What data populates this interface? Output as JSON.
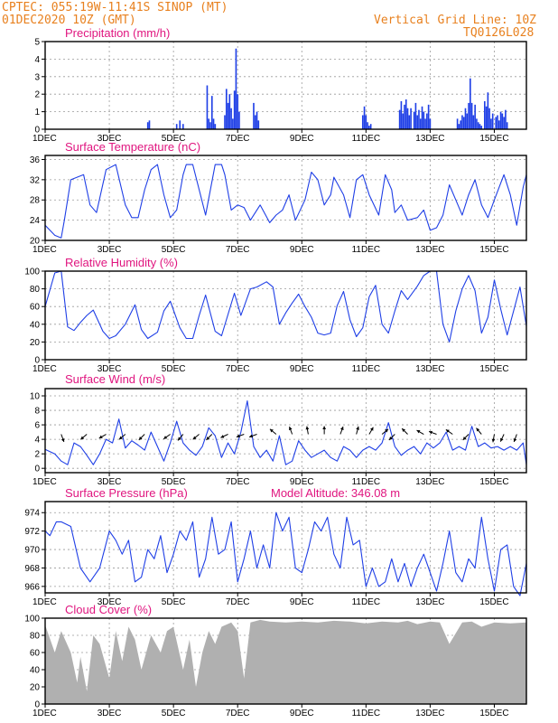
{
  "header": {
    "line1": "CPTEC:   055:19W-11:41S   SINOP (MT)",
    "line2": "01DEC2020 10Z (GMT)",
    "grid_note": "Vertical Grid Line: 10Z",
    "model_id": "TQ0126L028"
  },
  "colors": {
    "header": "#e8801e",
    "panel_title": "#e0157f",
    "series": "#1f3fe6",
    "cloud": "#b0b0b0",
    "grid": "#9a9a9a"
  },
  "x_axis": {
    "tick_labels": [
      "1DEC",
      "3DEC",
      "5DEC",
      "7DEC",
      "9DEC",
      "11DEC",
      "13DEC",
      "15DEC"
    ],
    "tick_days": [
      0,
      2,
      4,
      6,
      8,
      10,
      12,
      14
    ],
    "range_days": [
      0,
      15
    ]
  },
  "chart_data": [
    {
      "id": "precip",
      "type": "bar",
      "title": "Precipitation (mm/h)",
      "ylim": [
        0,
        5
      ],
      "yticks": [
        0,
        1,
        2,
        3,
        4,
        5
      ],
      "x_day": [
        3.2,
        3.25,
        4.1,
        4.2,
        4.3,
        5.05,
        5.1,
        5.15,
        5.2,
        5.25,
        5.3,
        5.6,
        5.65,
        5.7,
        5.75,
        5.8,
        5.85,
        5.9,
        5.95,
        6.0,
        6.05,
        6.5,
        6.55,
        6.6,
        6.65,
        9.9,
        9.95,
        10.0,
        10.05,
        10.1,
        10.15,
        11.05,
        11.1,
        11.15,
        11.2,
        11.25,
        11.3,
        11.35,
        11.4,
        11.5,
        11.55,
        11.6,
        11.65,
        11.7,
        11.75,
        11.8,
        11.85,
        11.9,
        11.95,
        12.0,
        12.85,
        12.9,
        12.95,
        13.0,
        13.05,
        13.1,
        13.15,
        13.2,
        13.25,
        13.3,
        13.35,
        13.4,
        13.45,
        13.5,
        13.55,
        13.6,
        13.7,
        13.75,
        13.8,
        13.85,
        13.9,
        13.95,
        14.05,
        14.1,
        14.15,
        14.2,
        14.25,
        14.3,
        14.35,
        14.4
      ],
      "values": [
        0.4,
        0.5,
        0.3,
        0.5,
        0.3,
        2.5,
        0.6,
        0.4,
        1.9,
        0.6,
        0.3,
        0.8,
        2.3,
        1.5,
        2.0,
        1.2,
        0.6,
        2.2,
        4.6,
        2.0,
        1.0,
        1.5,
        0.8,
        1.0,
        0.5,
        0.8,
        1.3,
        0.8,
        0.4,
        0.2,
        0.3,
        1.1,
        1.6,
        0.9,
        1.4,
        1.7,
        1.2,
        0.8,
        1.2,
        1.0,
        1.5,
        0.8,
        1.1,
        0.6,
        1.3,
        1.0,
        0.6,
        0.9,
        1.4,
        0.6,
        0.6,
        0.3,
        0.5,
        0.8,
        0.7,
        1.2,
        0.9,
        1.5,
        2.9,
        1.5,
        0.8,
        1.4,
        0.6,
        0.4,
        0.3,
        0.2,
        1.6,
        1.3,
        2.1,
        1.2,
        0.6,
        0.9,
        0.7,
        0.8,
        0.5,
        1.0,
        0.9,
        0.7,
        1.1,
        0.4
      ]
    },
    {
      "id": "temp",
      "type": "line",
      "title": "Surface Temperature (nC)",
      "ylim": [
        20,
        36.8
      ],
      "yticks": [
        20,
        24,
        28,
        32,
        36
      ],
      "x_day": [
        0,
        0.3,
        0.5,
        0.6,
        0.8,
        1.2,
        1.4,
        1.6,
        1.9,
        2.2,
        2.5,
        2.7,
        2.9,
        3.1,
        3.3,
        3.5,
        3.7,
        3.9,
        4.1,
        4.3,
        4.4,
        4.6,
        4.8,
        5.0,
        5.3,
        5.5,
        5.6,
        5.8,
        6.0,
        6.2,
        6.4,
        6.7,
        7.0,
        7.2,
        7.4,
        7.6,
        7.8,
        8.1,
        8.3,
        8.5,
        8.7,
        8.9,
        9.0,
        9.3,
        9.5,
        9.7,
        9.9,
        10.1,
        10.4,
        10.6,
        10.8,
        10.9,
        11.1,
        11.3,
        11.6,
        11.8,
        12.0,
        12.2,
        12.4,
        12.6,
        12.8,
        13.0,
        13.2,
        13.4,
        13.6,
        13.8,
        14.0,
        14.3,
        14.5,
        14.7,
        14.9,
        15.0
      ],
      "values": [
        23,
        21,
        20.5,
        24,
        32,
        33,
        27,
        25.5,
        34,
        35,
        27,
        24.5,
        24.5,
        30,
        34,
        35,
        29,
        24.5,
        26,
        33,
        35,
        35,
        30,
        25,
        35,
        35,
        33,
        26,
        27,
        26.5,
        24,
        27,
        23.5,
        25,
        26,
        29,
        24,
        28,
        33.5,
        32,
        27,
        29,
        32.5,
        29,
        24.5,
        32,
        33,
        29,
        25,
        33,
        30,
        25.5,
        27,
        24,
        24.5,
        26,
        22,
        22.5,
        25,
        31,
        28,
        25,
        29,
        32,
        27,
        24.5,
        28,
        33,
        29,
        23,
        30.5,
        33
      ]
    },
    {
      "id": "rh",
      "type": "line",
      "title": "Relative Humidity (%)",
      "ylim": [
        0,
        100
      ],
      "yticks": [
        0,
        20,
        40,
        60,
        80,
        100
      ],
      "x_day": [
        0,
        0.3,
        0.5,
        0.7,
        0.9,
        1.1,
        1.3,
        1.5,
        1.8,
        2.0,
        2.2,
        2.5,
        2.8,
        3.0,
        3.2,
        3.5,
        3.7,
        3.9,
        4.2,
        4.4,
        4.6,
        4.8,
        5.0,
        5.3,
        5.5,
        5.7,
        5.9,
        6.1,
        6.4,
        6.6,
        6.9,
        7.1,
        7.3,
        7.5,
        7.7,
        7.9,
        8.1,
        8.3,
        8.5,
        8.7,
        8.9,
        9.1,
        9.3,
        9.5,
        9.7,
        9.9,
        10.1,
        10.3,
        10.5,
        10.7,
        10.9,
        11.1,
        11.3,
        11.6,
        11.8,
        12.0,
        12.2,
        12.4,
        12.6,
        12.8,
        13.0,
        13.2,
        13.4,
        13.6,
        13.8,
        14.0,
        14.2,
        14.4,
        14.6,
        14.8,
        15.0
      ],
      "values": [
        60,
        98,
        100,
        37,
        33,
        42,
        50,
        56,
        32,
        24,
        27,
        40,
        62,
        34,
        24,
        31,
        55,
        66,
        36,
        24,
        24,
        50,
        73,
        32,
        27,
        51,
        75,
        50,
        80,
        82,
        88,
        82,
        40,
        53,
        64,
        74,
        60,
        48,
        30,
        28,
        30,
        61,
        77,
        45,
        26,
        36,
        71,
        84,
        40,
        30,
        55,
        78,
        68,
        83,
        95,
        100,
        100,
        40,
        20,
        55,
        80,
        95,
        78,
        30,
        48,
        90,
        57,
        28,
        55,
        82,
        38
      ]
    },
    {
      "id": "wind",
      "type": "line",
      "title": "Surface Wind (m/s)",
      "ylim": [
        -0.6,
        11
      ],
      "yticks": [
        0,
        2,
        4,
        6,
        8,
        10
      ],
      "x_day": [
        0,
        0.3,
        0.5,
        0.7,
        0.9,
        1.1,
        1.3,
        1.5,
        1.7,
        1.9,
        2.1,
        2.3,
        2.5,
        2.7,
        2.9,
        3.1,
        3.3,
        3.5,
        3.7,
        3.9,
        4.1,
        4.3,
        4.5,
        4.7,
        4.9,
        5.1,
        5.3,
        5.5,
        5.7,
        5.9,
        6.1,
        6.3,
        6.5,
        6.7,
        6.9,
        7.1,
        7.3,
        7.5,
        7.7,
        7.9,
        8.1,
        8.3,
        8.5,
        8.7,
        8.9,
        9.1,
        9.3,
        9.5,
        9.7,
        9.9,
        10.1,
        10.3,
        10.5,
        10.7,
        10.9,
        11.1,
        11.3,
        11.5,
        11.7,
        11.9,
        12.1,
        12.3,
        12.5,
        12.7,
        12.9,
        13.1,
        13.3,
        13.5,
        13.7,
        13.9,
        14.1,
        14.3,
        14.5,
        14.7,
        14.9,
        15.0
      ],
      "values": [
        2.6,
        2.0,
        1.0,
        0.5,
        3.5,
        3.0,
        1.8,
        0.5,
        2.0,
        4.0,
        3.5,
        6.8,
        2.8,
        3.8,
        3.2,
        2.5,
        5.0,
        3.0,
        1.0,
        3.5,
        6.5,
        3.5,
        2.5,
        1.8,
        3.0,
        5.6,
        4.5,
        1.5,
        3.5,
        2.0,
        5.0,
        9.3,
        3.0,
        1.5,
        2.5,
        1.0,
        4.5,
        0.5,
        1.0,
        3.8,
        2.5,
        1.5,
        2.0,
        2.5,
        1.5,
        1.0,
        3.0,
        2.5,
        1.5,
        2.5,
        3.0,
        2.5,
        3.5,
        6.3,
        3.0,
        1.8,
        2.5,
        3.0,
        2.0,
        3.5,
        2.8,
        3.5,
        5.0,
        2.5,
        3.0,
        2.5,
        5.8,
        3.0,
        3.5,
        2.8,
        3.0,
        2.5,
        3.0,
        2.5,
        3.5,
        0.5
      ],
      "arrows_day": [
        0.5,
        1.3,
        1.9,
        2.5,
        3.1,
        3.9,
        4.3,
        4.8,
        5.2,
        5.7,
        6.2,
        6.6,
        7.2,
        7.7,
        8.2,
        8.7,
        9.2,
        9.7,
        10.1,
        10.5,
        10.9,
        11.3,
        11.8,
        12.2,
        12.7,
        13.2,
        13.6,
        14.0,
        14.3,
        14.7
      ],
      "arrows_deg": [
        290,
        220,
        210,
        220,
        225,
        215,
        230,
        220,
        225,
        205,
        200,
        200,
        140,
        110,
        100,
        90,
        70,
        75,
        60,
        40,
        225,
        135,
        150,
        160,
        145,
        225,
        130,
        260,
        245,
        250
      ]
    },
    {
      "id": "pres",
      "type": "line",
      "title": "Surface Pressure (hPa)",
      "ylim": [
        965.3,
        975.2
      ],
      "yticks": [
        966,
        968,
        970,
        972,
        974
      ],
      "model_altitude": "Model Altitude: 346.08 m",
      "x_day": [
        0,
        0.15,
        0.35,
        0.5,
        0.8,
        1.1,
        1.4,
        1.7,
        2.0,
        2.2,
        2.4,
        2.6,
        2.8,
        3.0,
        3.2,
        3.4,
        3.6,
        3.8,
        4.0,
        4.2,
        4.4,
        4.6,
        4.8,
        5.0,
        5.2,
        5.4,
        5.6,
        5.8,
        6.0,
        6.2,
        6.4,
        6.6,
        6.8,
        7.0,
        7.2,
        7.4,
        7.6,
        7.8,
        8.0,
        8.2,
        8.4,
        8.6,
        8.8,
        9.0,
        9.2,
        9.4,
        9.6,
        9.8,
        10.0,
        10.2,
        10.4,
        10.6,
        10.8,
        11.0,
        11.2,
        11.4,
        11.6,
        11.8,
        12.0,
        12.2,
        12.4,
        12.6,
        12.8,
        13.0,
        13.2,
        13.4,
        13.6,
        13.8,
        14.0,
        14.2,
        14.4,
        14.6,
        14.8,
        15.0
      ],
      "values": [
        972,
        971.5,
        973,
        973,
        972.5,
        968,
        966.5,
        968,
        972,
        971,
        969.5,
        971,
        966.5,
        967,
        970,
        969,
        971.5,
        967.5,
        969.5,
        972,
        971,
        973,
        967,
        969,
        973.5,
        969.5,
        970,
        973,
        966.5,
        969,
        972,
        968,
        970.5,
        968,
        974,
        972,
        973.5,
        968,
        967.5,
        970,
        973,
        972,
        973.5,
        969.5,
        968,
        973.5,
        970.5,
        971,
        966,
        968,
        966,
        966.5,
        969,
        966.5,
        968.5,
        966,
        968,
        969.5,
        967.5,
        965.5,
        968.5,
        972,
        967.5,
        966.5,
        969,
        968,
        973.5,
        969,
        965.5,
        970,
        970.5,
        966,
        965,
        968.5
      ]
    },
    {
      "id": "cloud",
      "type": "area",
      "title": "Cloud Cover (%)",
      "ylim": [
        0,
        100
      ],
      "yticks": [
        0,
        20,
        40,
        60,
        80,
        100
      ],
      "x_day": [
        0,
        0.3,
        0.5,
        0.8,
        1.0,
        1.1,
        1.3,
        1.5,
        1.7,
        2.0,
        2.2,
        2.4,
        2.6,
        2.8,
        3.0,
        3.3,
        3.6,
        3.8,
        4.0,
        4.3,
        4.5,
        4.7,
        4.9,
        5.1,
        5.3,
        5.5,
        5.8,
        6.0,
        6.2,
        6.4,
        6.7,
        7.0,
        7.5,
        8.0,
        8.5,
        9.0,
        9.5,
        10.0,
        10.5,
        11.0,
        11.3,
        11.6,
        12.0,
        12.3,
        12.6,
        13.0,
        13.3,
        13.6,
        14.0,
        14.5,
        15.0
      ],
      "values": [
        92,
        60,
        85,
        60,
        25,
        55,
        15,
        80,
        70,
        30,
        85,
        50,
        90,
        75,
        40,
        80,
        60,
        85,
        90,
        40,
        75,
        20,
        60,
        85,
        70,
        90,
        95,
        85,
        30,
        95,
        98,
        96,
        95,
        96,
        95,
        97,
        96,
        94,
        96,
        95,
        97,
        93,
        96,
        95,
        70,
        95,
        96,
        90,
        95,
        94,
        95
      ]
    }
  ]
}
